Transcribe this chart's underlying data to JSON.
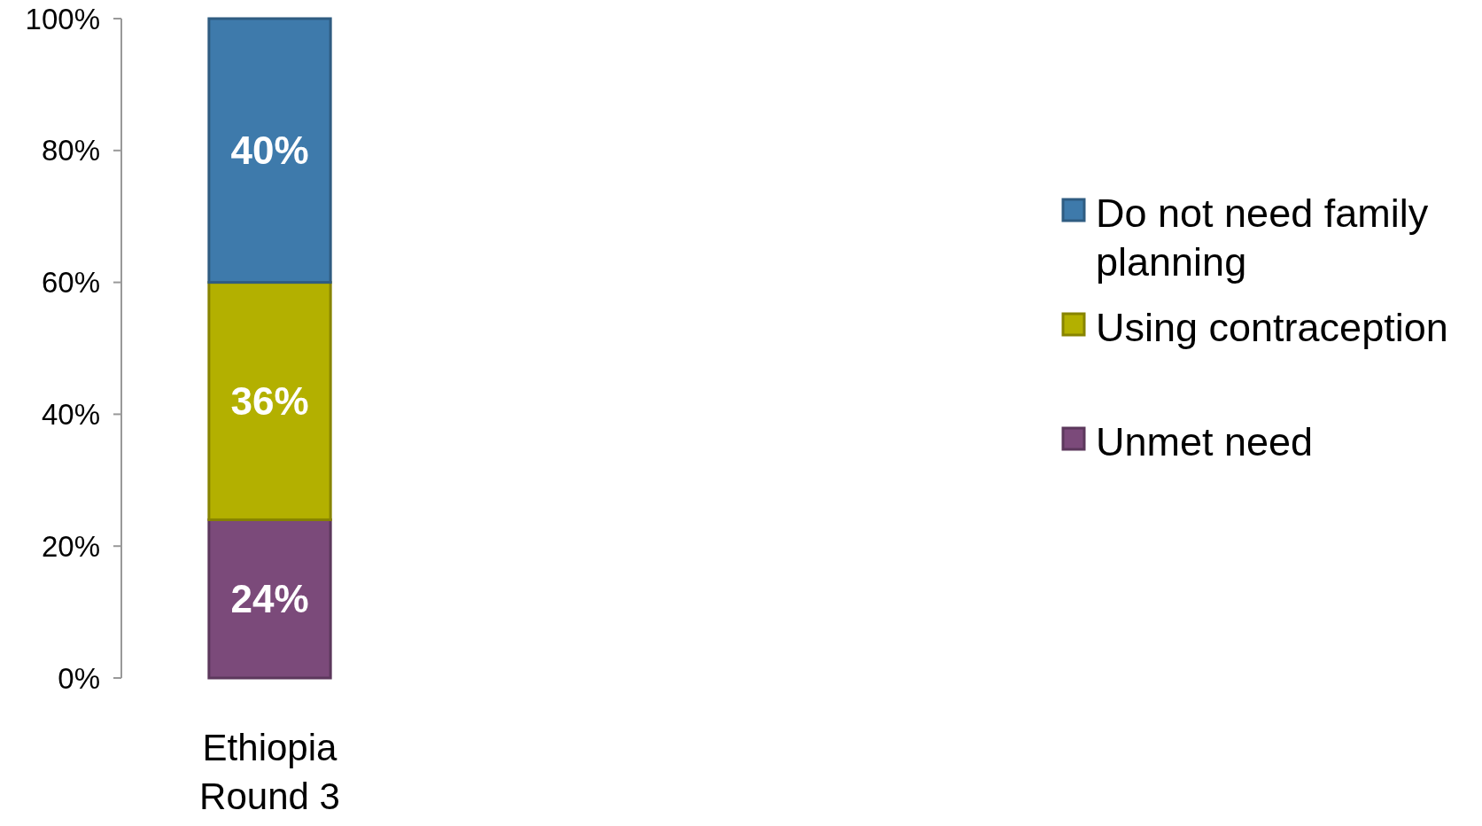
{
  "chart_data": {
    "type": "bar",
    "stacked": true,
    "categories": [
      "Ethiopia Round 3"
    ],
    "series": [
      {
        "name": "Unmet need",
        "color": "#7b4a7a",
        "values": [
          24
        ],
        "value_labels": [
          "24%"
        ]
      },
      {
        "name": "Using contraception",
        "color": "#b3b000",
        "values": [
          36
        ],
        "value_labels": [
          "36%"
        ]
      },
      {
        "name": "Do not need family planning",
        "color": "#3e7aab",
        "values": [
          40
        ],
        "value_labels": [
          "40%"
        ]
      }
    ],
    "ylim": [
      0,
      100
    ],
    "yticks": [
      {
        "value": 0,
        "label": "0%"
      },
      {
        "value": 20,
        "label": "20%"
      },
      {
        "value": 40,
        "label": "40%"
      },
      {
        "value": 60,
        "label": "60%"
      },
      {
        "value": 80,
        "label": "80%"
      },
      {
        "value": 100,
        "label": "100%"
      }
    ],
    "legend": "right",
    "grid": false
  }
}
